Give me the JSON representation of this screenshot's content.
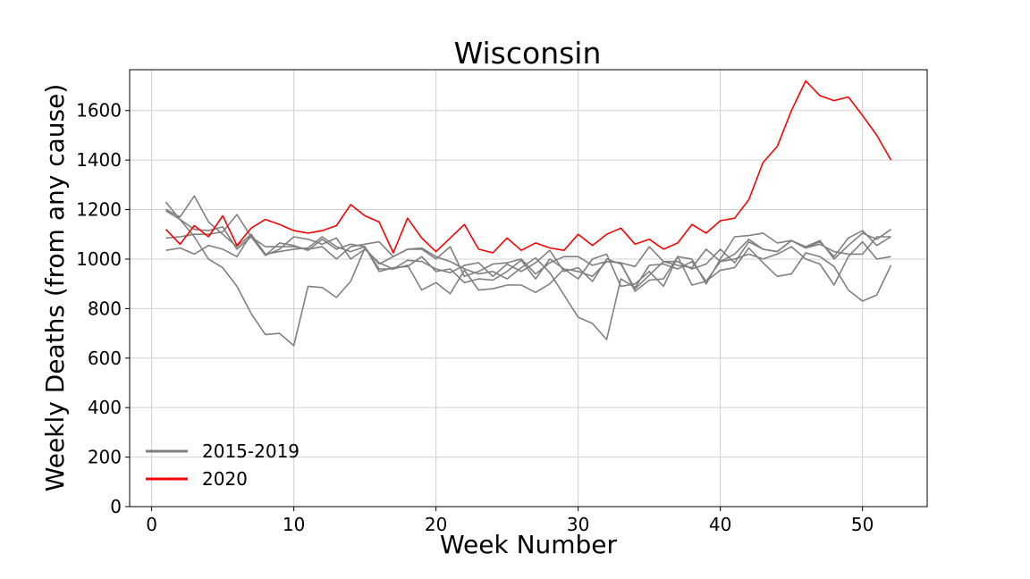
{
  "chart_data": {
    "type": "line",
    "title": "Wisconsin",
    "xlabel": "Week Number",
    "ylabel": "Weekly Deaths (from any cause)",
    "xlim": [
      -1.55,
      54.55
    ],
    "ylim": [
      0,
      1765
    ],
    "xticks": [
      0,
      10,
      20,
      30,
      40,
      50
    ],
    "yticks": [
      0,
      200,
      400,
      600,
      800,
      1000,
      1200,
      1400,
      1600
    ],
    "grid": true,
    "legend": {
      "placement": "lower-left",
      "entries": [
        {
          "label": "2015-2019",
          "color": "#808080"
        },
        {
          "label": "2020",
          "color": "#ff0000"
        }
      ]
    },
    "series": [
      {
        "group": "2015-2019",
        "color": "#808080",
        "values": [
          1035,
          1045,
          1020,
          1055,
          1040,
          1010,
          1100,
          1015,
          1065,
          1055,
          1035,
          1080,
          1040,
          1060,
          1050,
          950,
          965,
          970,
          1010,
          950,
          960,
          905,
          920,
          915,
          950,
          995,
          920,
          1000,
          960,
          950,
          930,
          990,
          985,
          870,
          915,
          920,
          1010,
          1000,
          900,
          1000,
          1090,
          1095,
          1105,
          1065,
          1075,
          1045,
          1070,
          1010,
          1085,
          1115,
          1055,
          1090
        ]
      },
      {
        "group": "2015-2019",
        "color": "#808080",
        "values": [
          1230,
          1160,
          1090,
          1000,
          965,
          890,
          780,
          695,
          700,
          650,
          890,
          885,
          845,
          910,
          1045,
          980,
          1010,
          1040,
          1045,
          1010,
          990,
          960,
          940,
          950,
          920,
          965,
          1005,
          945,
          855,
          765,
          740,
          675,
          920,
          885,
          975,
          980,
          960,
          990,
          910,
          955,
          965,
          1045,
          985,
          930,
          940,
          1025,
          1010,
          970,
          875,
          830,
          855,
          975
        ]
      },
      {
        "group": "2015-2019",
        "color": "#808080",
        "values": [
          1085,
          1090,
          1100,
          1100,
          1110,
          1180,
          1090,
          1050,
          1050,
          1050,
          1040,
          1050,
          1000,
          1050,
          1060,
          1070,
          1010,
          1040,
          1040,
          1000,
          1050,
          930,
          950,
          980,
          985,
          1000,
          940,
          985,
          1010,
          1010,
          975,
          990,
          985,
          970,
          1050,
          990,
          975,
          965,
          1040,
          990,
          1020,
          1080,
          1040,
          1030,
          1075,
          1045,
          1060,
          1030,
          1020,
          1020,
          1090,
          1090
        ]
      },
      {
        "group": "2015-2019",
        "color": "#808080",
        "values": [
          1200,
          1170,
          1255,
          1150,
          1100,
          1050,
          1100,
          1020,
          1030,
          1040,
          1045,
          1090,
          1050,
          1030,
          1050,
          960,
          960,
          975,
          875,
          905,
          860,
          955,
          875,
          880,
          895,
          895,
          865,
          900,
          960,
          920,
          1000,
          1020,
          890,
          900,
          950,
          890,
          1010,
          895,
          910,
          990,
          1000,
          1020,
          1000,
          1020,
          1050,
          1000,
          980,
          895,
          1010,
          1070,
          1000,
          1010
        ]
      },
      {
        "group": "2015-2019",
        "color": "#808080",
        "values": [
          1195,
          1160,
          1120,
          1115,
          1130,
          1040,
          1090,
          1015,
          1040,
          1090,
          1080,
          1060,
          1085,
          1000,
          1040,
          985,
          960,
          995,
          990,
          960,
          945,
          975,
          985,
          930,
          980,
          950,
          985,
          1035,
          950,
          965,
          910,
          1000,
          980,
          880,
          935,
          990,
          990,
          960,
          980,
          1040,
          985,
          1070,
          1040,
          1030,
          1075,
          1050,
          1075,
          1000,
          1055,
          1105,
          1080,
          1120
        ]
      },
      {
        "group": "2020",
        "color": "#ff0000",
        "values": [
          1120,
          1060,
          1135,
          1090,
          1175,
          1055,
          1125,
          1160,
          1140,
          1115,
          1105,
          1115,
          1135,
          1220,
          1175,
          1150,
          1025,
          1165,
          1085,
          1030,
          1085,
          1140,
          1040,
          1025,
          1085,
          1035,
          1065,
          1045,
          1035,
          1100,
          1055,
          1100,
          1125,
          1060,
          1080,
          1040,
          1065,
          1140,
          1105,
          1155,
          1165,
          1240,
          1390,
          1455,
          1600,
          1720,
          1660,
          1640,
          1655,
          1580,
          1500,
          1400
        ]
      }
    ]
  }
}
